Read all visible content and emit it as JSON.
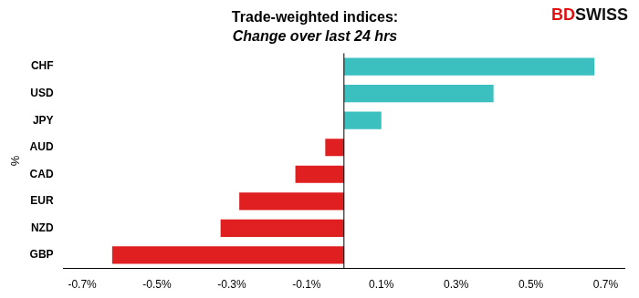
{
  "chart_data": {
    "type": "bar",
    "orientation": "horizontal",
    "title": "Trade-weighted indices:",
    "subtitle": "Change over last 24 hrs",
    "ylabel": "%",
    "categories": [
      "CHF",
      "USD",
      "JPY",
      "AUD",
      "CAD",
      "EUR",
      "NZD",
      "GBP"
    ],
    "values": [
      0.67,
      0.4,
      0.1,
      -0.05,
      -0.13,
      -0.28,
      -0.33,
      -0.62
    ],
    "colors": [
      "#3bbfbf",
      "#3bbfbf",
      "#3bbfbf",
      "#e02020",
      "#e02020",
      "#e02020",
      "#e02020",
      "#e02020"
    ],
    "xlim": [
      -0.75,
      0.75
    ],
    "xticks": [
      {
        "value": -0.7,
        "label": "-0.7%"
      },
      {
        "value": -0.5,
        "label": "-0.5%"
      },
      {
        "value": -0.3,
        "label": "-0.3%"
      },
      {
        "value": -0.1,
        "label": "-0.1%"
      },
      {
        "value": 0.1,
        "label": "0.1%"
      },
      {
        "value": 0.3,
        "label": "0.3%"
      },
      {
        "value": 0.5,
        "label": "0.5%"
      },
      {
        "value": 0.7,
        "label": "0.7%"
      }
    ],
    "grid": false,
    "annotations": [
      {
        "text": "BD",
        "color": "#e01010"
      },
      {
        "text": "SWISS",
        "color": "#111111"
      }
    ]
  }
}
